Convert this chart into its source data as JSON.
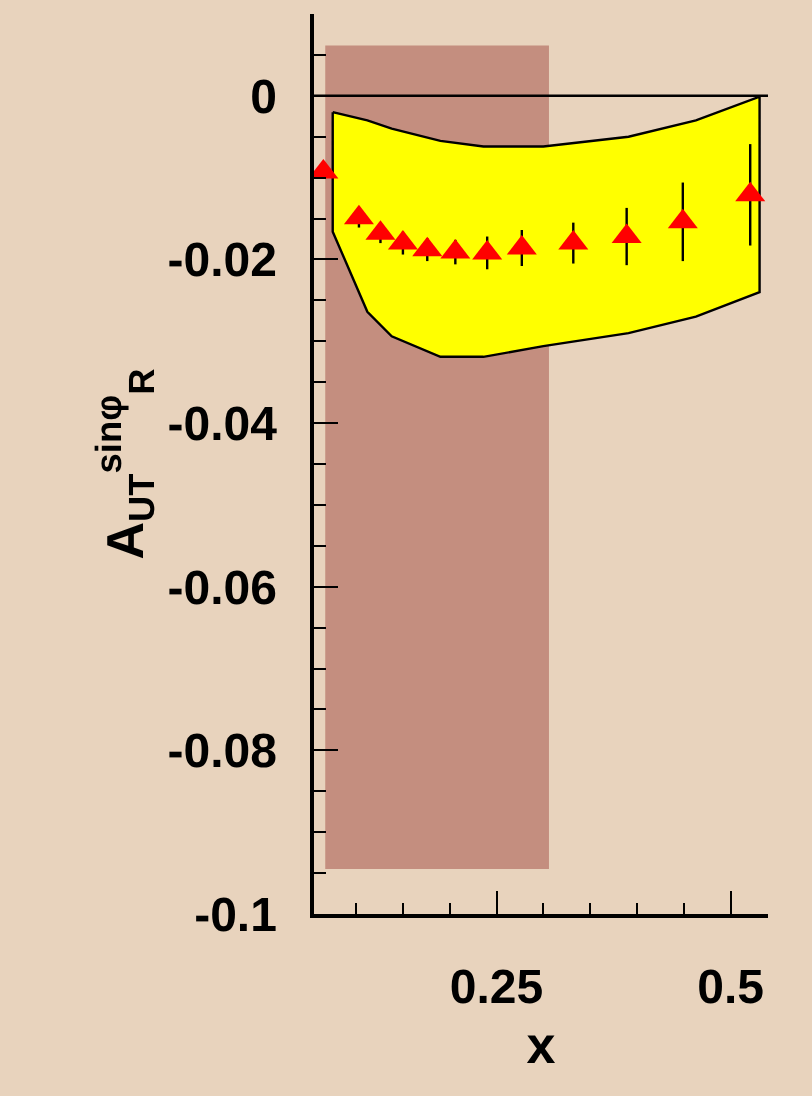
{
  "chart_data": {
    "type": "scatter",
    "xlabel": "x",
    "ylabel": "A$_{UT}$$^{sinφ}$$_{R}$",
    "xlim": [
      0.055,
      0.54
    ],
    "ylim": [
      -0.1,
      0.01
    ],
    "xticks": [
      0.25,
      0.5
    ],
    "yticks": [
      0,
      -0.02,
      -0.04,
      -0.06,
      -0.08,
      -0.1
    ],
    "marker": "triangle",
    "ref_lines": [
      {
        "axis": "y",
        "value": 0,
        "color": "#000000"
      }
    ],
    "bands": [
      {
        "axis": "x",
        "from": 0.067,
        "to": 0.306,
        "color": "#c48e7f"
      }
    ],
    "series": [
      {
        "type": "area",
        "color": "#ffff00",
        "x": [
          0.075,
          0.112,
          0.138,
          0.19,
          0.236,
          0.3,
          0.391,
          0.463,
          0.531
        ],
        "values": [
          null,
          null,
          null,
          null,
          null,
          null,
          null,
          null,
          null
        ],
        "upper": [
          -0.002,
          -0.003,
          -0.004,
          -0.0055,
          -0.0062,
          -0.0062,
          -0.005,
          -0.003,
          -0.0001
        ],
        "lower": [
          -0.0166,
          -0.0264,
          -0.0294,
          -0.0319,
          -0.0319,
          -0.0306,
          -0.029,
          -0.027,
          -0.024
        ]
      },
      {
        "color": "#ff0000",
        "x": [
          0.065,
          0.103,
          0.126,
          0.15,
          0.176,
          0.206,
          0.24,
          0.277,
          0.332,
          0.389,
          0.449,
          0.521
        ],
        "values": [
          -0.0093,
          -0.0149,
          -0.0168,
          -0.018,
          -0.0188,
          -0.0191,
          -0.0192,
          -0.0186,
          -0.018,
          -0.0172,
          -0.0154,
          -0.0121
        ],
        "errors": [
          null,
          0.0012,
          0.0012,
          0.0014,
          0.0014,
          0.0015,
          0.002,
          0.0022,
          0.0025,
          0.0035,
          0.0048,
          0.0062
        ]
      }
    ]
  }
}
